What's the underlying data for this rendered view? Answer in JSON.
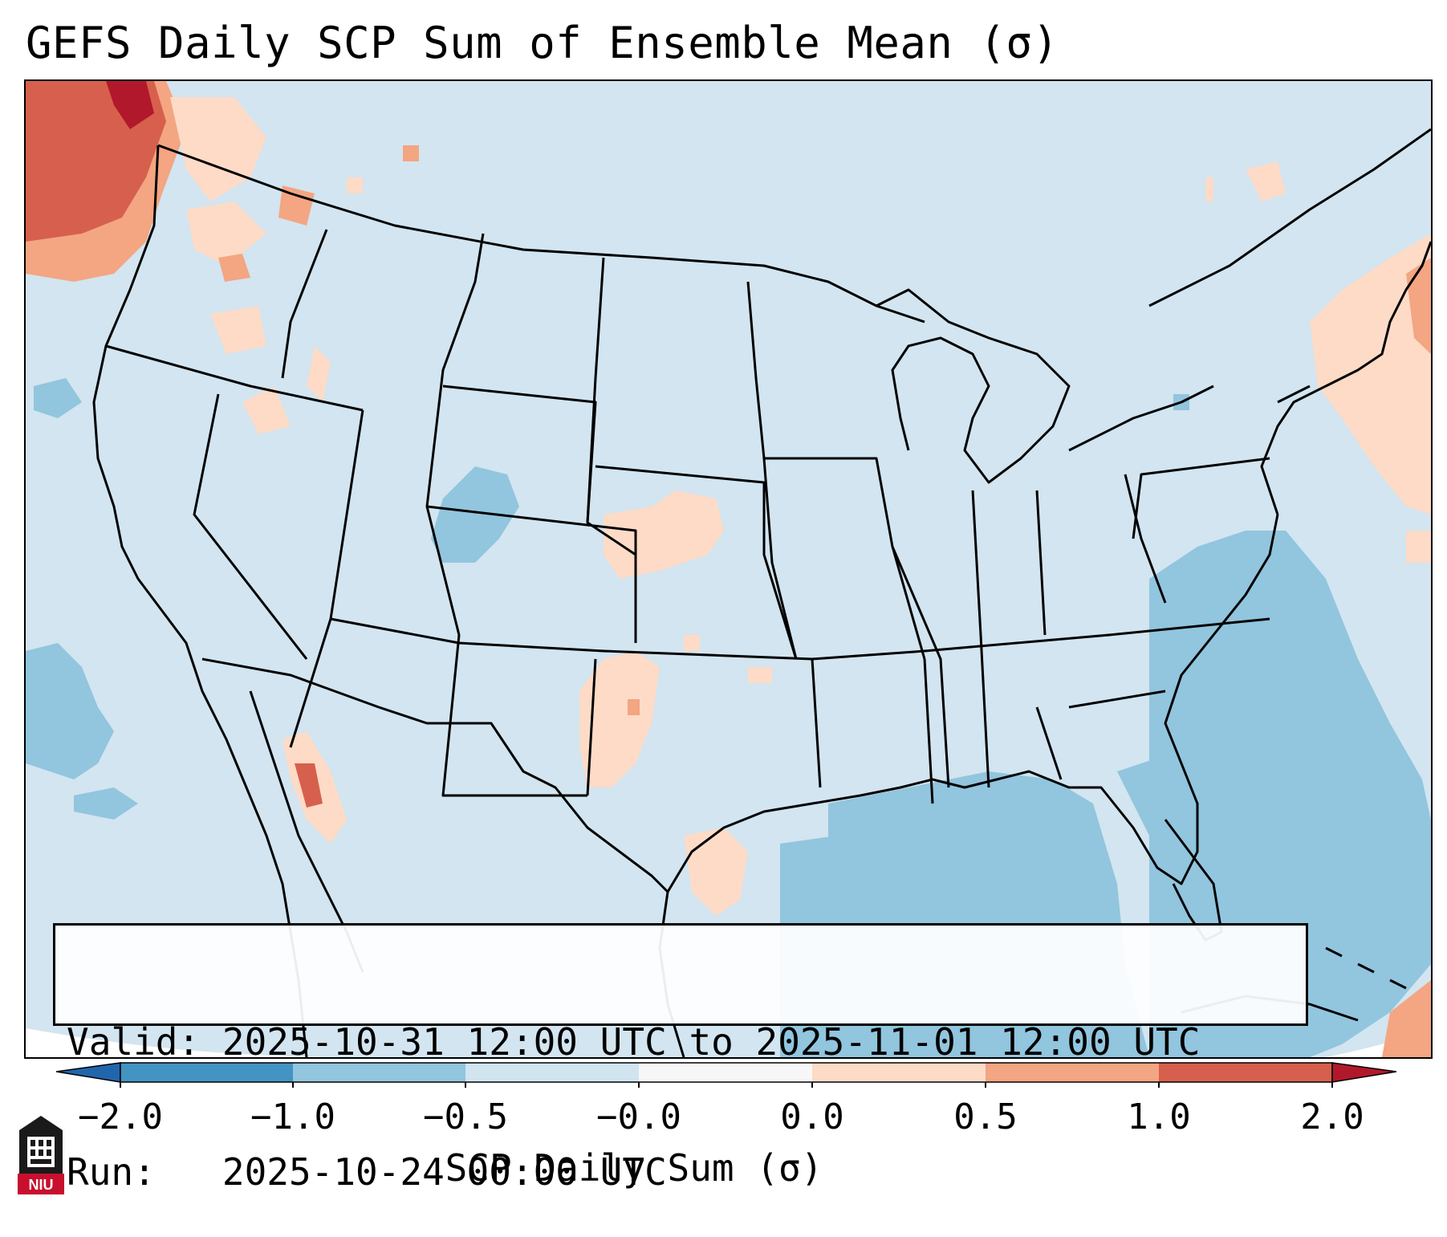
{
  "title": "GEFS Daily SCP Sum of Ensemble Mean (σ)",
  "info": {
    "valid_label": "Valid:",
    "valid_value": "2025-10-31 12:00 UTC to 2025-11-01 12:00 UTC",
    "run_label": "Run:",
    "run_value": "2025-10-24 00:00 UTC"
  },
  "colorbar": {
    "label": "SCP Daily Sum (σ)",
    "ticks": [
      "−2.0",
      "−1.0",
      "−0.5",
      "−0.0",
      "0.0",
      "0.5",
      "1.0",
      "2.0"
    ],
    "colors": [
      "#4393c3",
      "#92c5de",
      "#d1e5f0",
      "#f7f7f7",
      "#fddbc7",
      "#f4a582",
      "#d6604d"
    ],
    "extend_low": "#2166ac",
    "extend_high": "#b2182b"
  },
  "logo": {
    "text": "NIU",
    "icon": "niu-tower-icon"
  }
}
